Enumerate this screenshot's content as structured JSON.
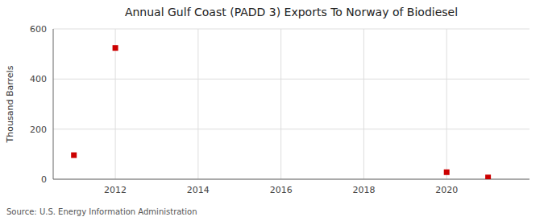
{
  "chart_data": {
    "type": "scatter",
    "title": "Annual Gulf Coast (PADD 3) Exports To Norway of Biodiesel",
    "y_label": "Thousand Barrels",
    "source": "Source: U.S. Energy Information Administration",
    "x": [
      2011,
      2012,
      2020,
      2021
    ],
    "values": [
      96,
      524,
      28,
      7
    ],
    "color": "#cc0000",
    "marker": "square",
    "xlim": [
      2010.5,
      2022
    ],
    "ylim": [
      0,
      600
    ],
    "xticks": [
      2012,
      2014,
      2016,
      2018,
      2020
    ],
    "yticks": [
      0,
      200,
      400,
      600
    ],
    "grid": true
  }
}
